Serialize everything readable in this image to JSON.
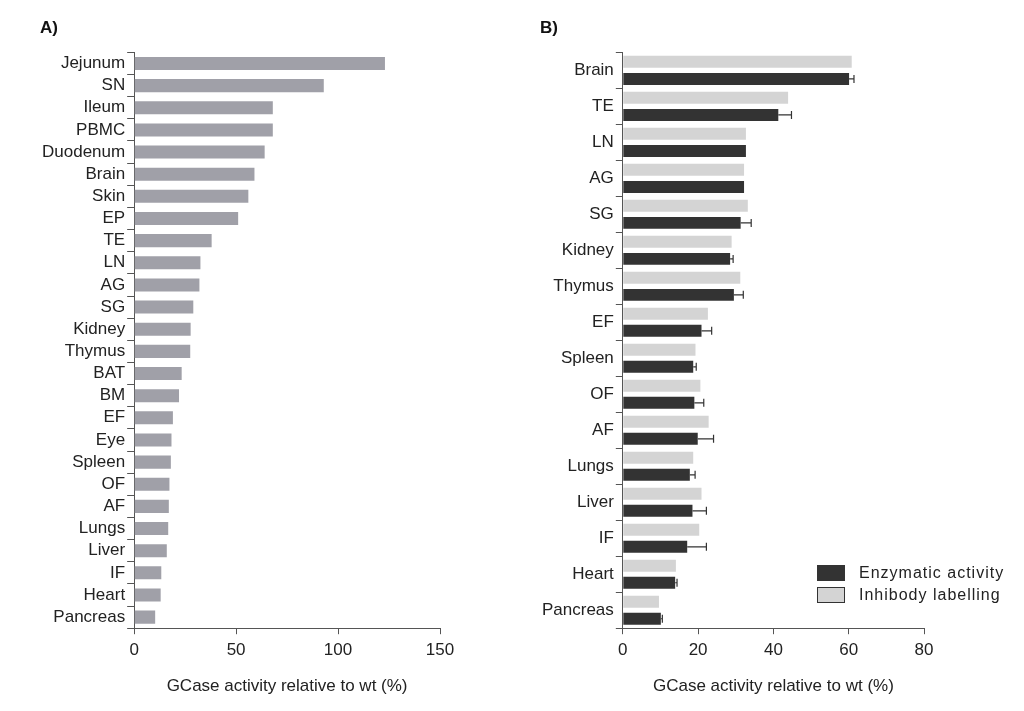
{
  "chart_data": [
    {
      "type": "bar",
      "orientation": "horizontal",
      "title": "A)",
      "xlabel": "GCase activity relative to wt (%)",
      "categories": [
        "Jejunum",
        "SN",
        "Ileum",
        "PBMC",
        "Duodenum",
        "Brain",
        "Skin",
        "EP",
        "TE",
        "LN",
        "AG",
        "SG",
        "Kidney",
        "Thymus",
        "BAT",
        "BM",
        "EF",
        "Eye",
        "Spleen",
        "OF",
        "AF",
        "Lungs",
        "Liver",
        "IF",
        "Heart",
        "Pancreas"
      ],
      "values": [
        123,
        93,
        68,
        68,
        64,
        59,
        56,
        51,
        38,
        32.5,
        32,
        29,
        27.7,
        27.5,
        23.3,
        22,
        19,
        18.3,
        18,
        17.3,
        17,
        16.7,
        16,
        13.3,
        13,
        10.3
      ],
      "color": "#a0a0a8",
      "xlim": [
        0,
        150
      ],
      "xticks": [
        0,
        50,
        100,
        150
      ],
      "grid": false,
      "legend": false
    },
    {
      "type": "bar",
      "orientation": "horizontal",
      "title": "B)",
      "xlabel": "GCase activity relative to wt (%)",
      "categories": [
        "Brain",
        "TE",
        "LN",
        "AG",
        "SG",
        "Kidney",
        "Thymus",
        "EF",
        "Spleen",
        "OF",
        "AF",
        "Lungs",
        "Liver",
        "IF",
        "Heart",
        "Pancreas"
      ],
      "series": [
        {
          "name": "Inhibody labelling",
          "color": "#d4d4d4",
          "values": [
            60.8,
            43.9,
            32.7,
            32.2,
            33.2,
            28.9,
            31.2,
            22.6,
            19.3,
            20.6,
            22.8,
            18.7,
            20.9,
            20.3,
            14.1,
            9.6
          ]
        },
        {
          "name": "Enzymatic activity",
          "color": "#333333",
          "values": [
            60.1,
            41.3,
            32.7,
            32.2,
            31.3,
            28.5,
            29.5,
            20.9,
            18.7,
            19,
            19.9,
            17.8,
            18.5,
            17.1,
            13.9,
            10.1
          ],
          "errors": [
            1.3,
            3.5,
            null,
            null,
            2.8,
            0.8,
            2.5,
            2.7,
            0.8,
            2.5,
            4.2,
            1.4,
            3.7,
            5.1,
            0.5,
            0.4
          ]
        }
      ],
      "xlim": [
        0,
        80
      ],
      "xticks": [
        0,
        20,
        40,
        60,
        80
      ],
      "grid": false,
      "legend": "bottom right"
    }
  ]
}
